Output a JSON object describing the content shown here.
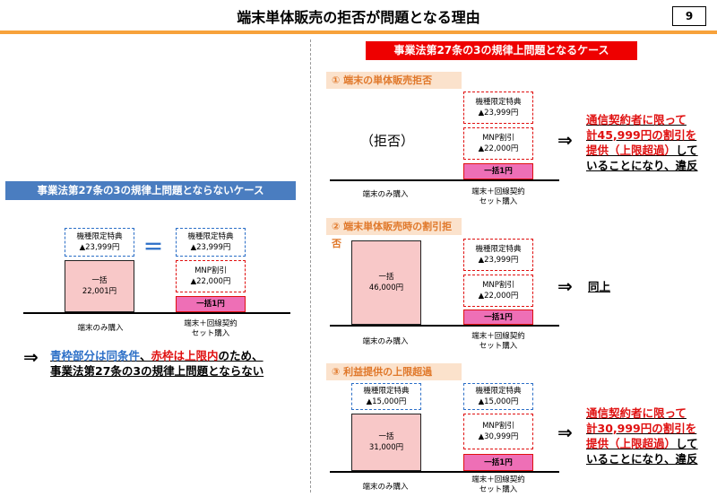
{
  "header": {
    "title": "端末単体販売の拒否が問題となる理由",
    "page_number": "9"
  },
  "left": {
    "banner": "事業法第27条の3の規律上問題とならないケース",
    "device_only": {
      "special": "機種限定特典\n▲23,999円",
      "lump": "一括\n22,001円",
      "caption": "端末のみ購入"
    },
    "equals": "＝",
    "set": {
      "special": "機種限定特典\n▲23,999円",
      "mnp": "MNP割引\n▲22,000円",
      "lump": "一括1円",
      "caption": "端末＋回線契約\nセット購入"
    },
    "arrow": "⇒",
    "note_line1_blue": "青枠部分は同条件",
    "note_line1_sep": "、",
    "note_line1_red": "赤枠は上限内",
    "note_line1_end": "のため、",
    "note_line2": "事業法第27条の3の規律上問題とならない"
  },
  "right": {
    "banner": "事業法第27条の3の規律上問題となるケース",
    "case1": {
      "tag": "①  端末の単体販売拒否",
      "reject": "（拒否）",
      "special": "機種限定特典\n▲23,999円",
      "mnp": "MNP割引\n▲22,000円",
      "lump": "一括1円",
      "caption_left": "端末のみ購入",
      "caption_right": "端末＋回線契約\nセット購入",
      "arrow": "⇒",
      "note_l1": "通信契約者に限って",
      "note_l2": "計45,999円の割引を",
      "note_l3a": "提供（上限超過）",
      "note_l3b": "して",
      "note_l4": "いることになり、違反"
    },
    "case2": {
      "tag": "②  端末単体販売時の割引拒否",
      "lump_left": "一括\n46,000円",
      "special": "機種限定特典\n▲23,999円",
      "mnp": "MNP割引\n▲22,000円",
      "lump": "一括1円",
      "caption_left": "端末のみ購入",
      "caption_right": "端末＋回線契約\nセット購入",
      "arrow": "⇒",
      "note": "同上"
    },
    "case3": {
      "tag": "③  利益提供の上限超過",
      "special_left": "機種限定特典\n▲15,000円",
      "lump_left": "一括\n31,000円",
      "special": "機種限定特典\n▲15,000円",
      "mnp": "MNP割引\n▲30,999円",
      "lump": "一括1円",
      "caption_left": "端末のみ購入",
      "caption_right": "端末＋回線契約\nセット購入",
      "arrow": "⇒",
      "note_l1": "通信契約者に限って",
      "note_l2": "計30,999円の割引を",
      "note_l3a": "提供（上限超過）",
      "note_l3b": "して",
      "note_l4": "いることになり、違反"
    }
  }
}
